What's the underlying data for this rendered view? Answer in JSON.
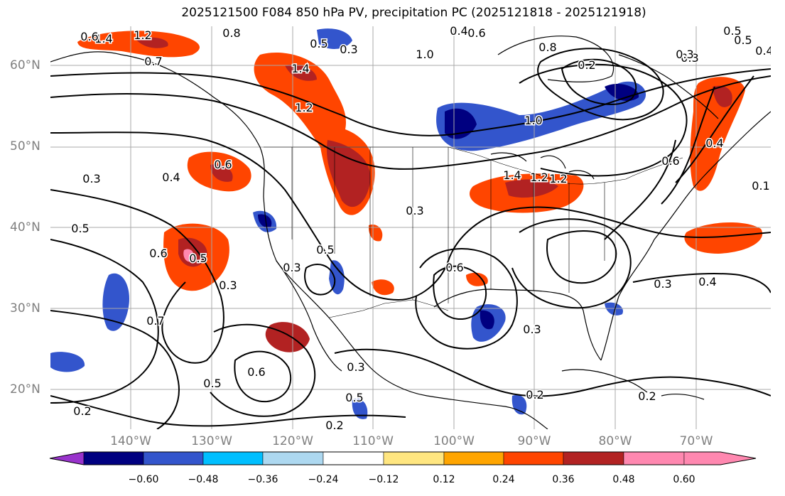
{
  "title": "2025121500 F084 850 hPa PV, precipitation PC (2025121818 - 2025121918)",
  "lat_ticks": [
    "60°N",
    "50°N",
    "40°N",
    "30°N",
    "20°N"
  ],
  "lon_ticks": [
    "140°W",
    "130°W",
    "120°W",
    "110°W",
    "100°W",
    "90°W",
    "80°W",
    "70°W"
  ],
  "contour_labels": [
    "1.4",
    "1.2",
    "0.8",
    "0.5",
    "0.3",
    "0.4",
    "0.6",
    "0.7",
    "0.5",
    "1.4",
    "1.2",
    "1.0",
    "0.5",
    "0.3",
    "0.2",
    "0.8",
    "0.6",
    "0.4",
    "1.4",
    "1.2",
    "0.3",
    "0.3",
    "0.4",
    "0.6",
    "0.5",
    "0.6",
    "0.5",
    "0.3",
    "0.5",
    "0.7",
    "0.3",
    "0.6",
    "0.5",
    "0.5",
    "0.3",
    "0.2",
    "0.2",
    "0.3",
    "0.4",
    "0.3",
    "0.6",
    "0.2",
    "0.2",
    "0.4",
    "0.6",
    "0.1",
    "1.2",
    "1.0",
    "0.3"
  ],
  "colorbar": {
    "colors": [
      "#9933cc",
      "#000080",
      "#3355cc",
      "#00bfff",
      "#add8f0",
      "#ffffff",
      "#ffe680",
      "#ffa500",
      "#ff4500",
      "#b22222",
      "#ff88b0"
    ],
    "tick_labels": [
      "−0.60",
      "−0.48",
      "−0.36",
      "−0.24",
      "−0.12",
      "0.12",
      "0.24",
      "0.36",
      "0.48",
      "0.60"
    ]
  }
}
